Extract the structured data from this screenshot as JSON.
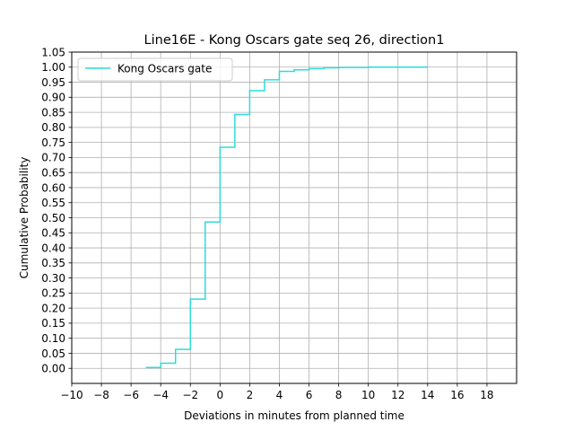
{
  "chart_data": {
    "type": "line",
    "title": "Line16E - Kong Oscars gate seq 26, direction1",
    "xlabel": "Deviations in minutes from planned time",
    "ylabel": "Cumulative Probability",
    "xlim": [
      -10,
      20
    ],
    "ylim": [
      -0.05,
      1.05
    ],
    "x_ticks": [
      -10,
      -8,
      -6,
      -4,
      -2,
      0,
      2,
      4,
      6,
      8,
      10,
      12,
      14,
      16,
      18
    ],
    "x_tick_labels": [
      "−10",
      "−8",
      "−6",
      "−4",
      "−2",
      "0",
      "2",
      "4",
      "6",
      "8",
      "10",
      "12",
      "14",
      "16",
      "18"
    ],
    "y_ticks": [
      0.0,
      0.05,
      0.1,
      0.15,
      0.2,
      0.25,
      0.3,
      0.35,
      0.4,
      0.45,
      0.5,
      0.55,
      0.6,
      0.65,
      0.7,
      0.75,
      0.8,
      0.85,
      0.9,
      0.95,
      1.0,
      1.05
    ],
    "y_tick_labels": [
      "0.00",
      "0.05",
      "0.10",
      "0.15",
      "0.20",
      "0.25",
      "0.30",
      "0.35",
      "0.40",
      "0.45",
      "0.50",
      "0.55",
      "0.60",
      "0.65",
      "0.70",
      "0.75",
      "0.80",
      "0.85",
      "0.90",
      "0.95",
      "1.00",
      "1.05"
    ],
    "grid": true,
    "legend_position": "top-left",
    "series": [
      {
        "name": "Kong Oscars gate",
        "color": "#2edbdb",
        "step": "post",
        "x": [
          -5,
          -4,
          -3,
          -2,
          -1,
          0,
          1,
          2,
          3,
          4,
          5,
          6,
          7,
          8,
          9,
          10,
          11,
          12,
          13,
          14
        ],
        "y": [
          0.003,
          0.017,
          0.063,
          0.23,
          0.486,
          0.734,
          0.843,
          0.922,
          0.958,
          0.986,
          0.991,
          0.995,
          0.998,
          0.999,
          0.999,
          1.0,
          1.0,
          1.0,
          1.0,
          1.0
        ]
      }
    ]
  }
}
